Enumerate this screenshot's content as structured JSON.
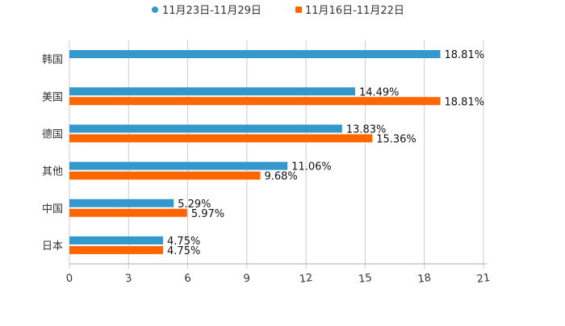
{
  "chart_data": {
    "type": "bar",
    "orientation": "horizontal",
    "categories": [
      "韩国",
      "美国",
      "德国",
      "其他",
      "中国",
      "日本"
    ],
    "series": [
      {
        "name": "11月23日-11月29日",
        "color": "#3399cc",
        "values": [
          18.81,
          14.49,
          13.83,
          11.06,
          5.29,
          4.75
        ],
        "labels": [
          "18.81%",
          "14.49%",
          "13.83%",
          "11.06%",
          "5.29%",
          "4.75%"
        ]
      },
      {
        "name": "11月16日-11月22日",
        "color": "#ff6600",
        "values": [
          null,
          18.81,
          15.36,
          9.68,
          5.97,
          4.75
        ],
        "labels": [
          "",
          "18.81%",
          "15.36%",
          "9.68%",
          "5.97%",
          "4.75%"
        ]
      }
    ],
    "xlim": [
      0,
      21
    ],
    "xticks": [
      "0",
      "3",
      "6",
      "9",
      "12",
      "15",
      "18",
      "21"
    ],
    "grid": true,
    "legend_position": "top-center"
  }
}
